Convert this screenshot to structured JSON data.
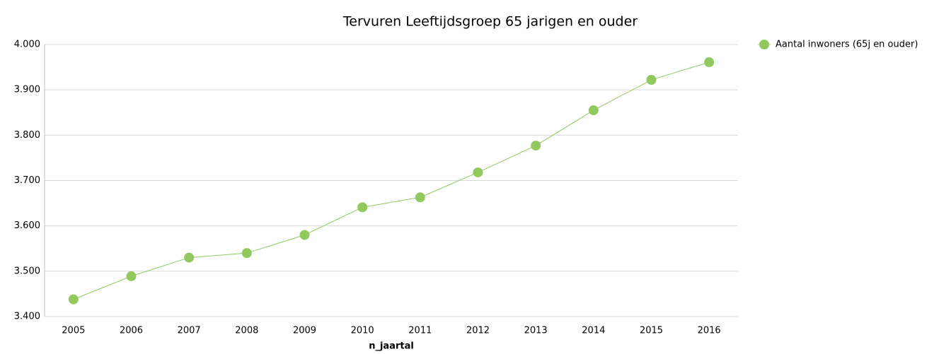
{
  "chart_data": {
    "type": "line",
    "title": "Tervuren  Leeftijdsgroep 65 jarigen en ouder",
    "x_label": "n_jaartal",
    "categories": [
      "2005",
      "2006",
      "2007",
      "2008",
      "2009",
      "2010",
      "2011",
      "2012",
      "2013",
      "2014",
      "2015",
      "2016"
    ],
    "series": [
      {
        "name": "Aantal inwoners (65j en ouder)",
        "color": "#92c95f",
        "values": [
          3438,
          3489,
          3530,
          3540,
          3580,
          3641,
          3663,
          3718,
          3777,
          3855,
          3922,
          3961
        ]
      }
    ],
    "ylim": [
      3400,
      4000
    ],
    "yticks": [
      {
        "value": 3400,
        "label": "3.400"
      },
      {
        "value": 3500,
        "label": "3.500"
      },
      {
        "value": 3600,
        "label": "3.600"
      },
      {
        "value": 3700,
        "label": "3.700"
      },
      {
        "value": 3800,
        "label": "3.800"
      },
      {
        "value": 3900,
        "label": "3.900"
      },
      {
        "value": 4000,
        "label": "4.000"
      }
    ],
    "grid": true,
    "legend": "right"
  }
}
